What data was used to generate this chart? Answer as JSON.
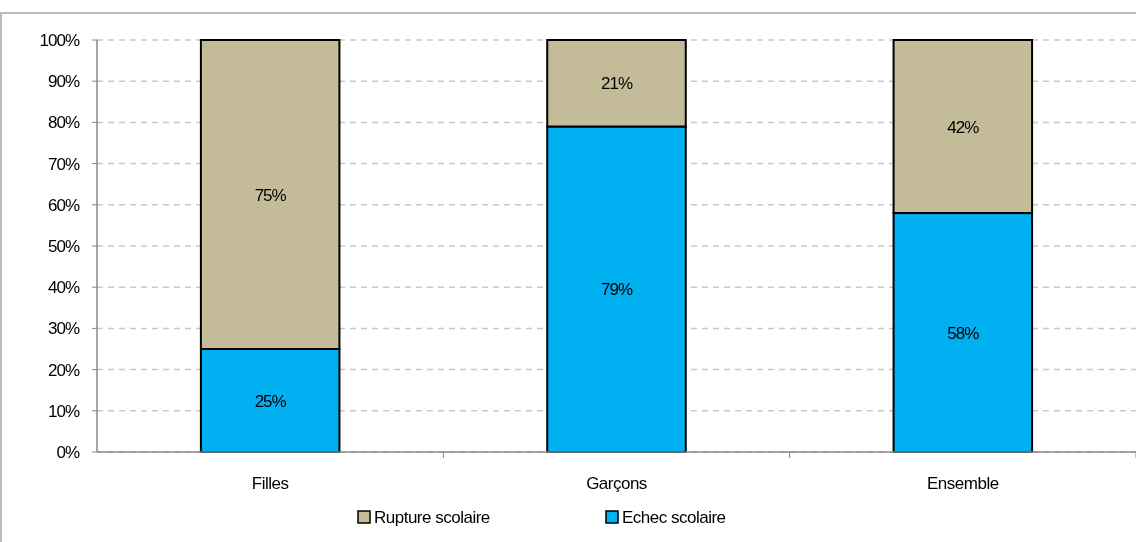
{
  "chart_data": {
    "type": "bar",
    "stacked": true,
    "categories": [
      "Filles",
      "Garçons",
      "Ensemble"
    ],
    "series": [
      {
        "name": "Echec scolaire",
        "color": "#00b0f0",
        "values": [
          25,
          79,
          58
        ],
        "value_labels": [
          "25%",
          "79%",
          "58%"
        ]
      },
      {
        "name": "Rupture scolaire",
        "color": "#c4bc98",
        "values": [
          75,
          21,
          42
        ],
        "value_labels": [
          "75%",
          "21%",
          "42%"
        ]
      }
    ],
    "ylim": [
      0,
      100
    ],
    "yticks": [
      {
        "value": 0,
        "label": "0%"
      },
      {
        "value": 10,
        "label": "10%"
      },
      {
        "value": 20,
        "label": "20%"
      },
      {
        "value": 30,
        "label": "30%"
      },
      {
        "value": 40,
        "label": "40%"
      },
      {
        "value": 50,
        "label": "50%"
      },
      {
        "value": 60,
        "label": "60%"
      },
      {
        "value": 70,
        "label": "70%"
      },
      {
        "value": 80,
        "label": "80%"
      },
      {
        "value": 90,
        "label": "90%"
      },
      {
        "value": 100,
        "label": "100%"
      }
    ],
    "grid": "y",
    "legend": "bottom"
  }
}
